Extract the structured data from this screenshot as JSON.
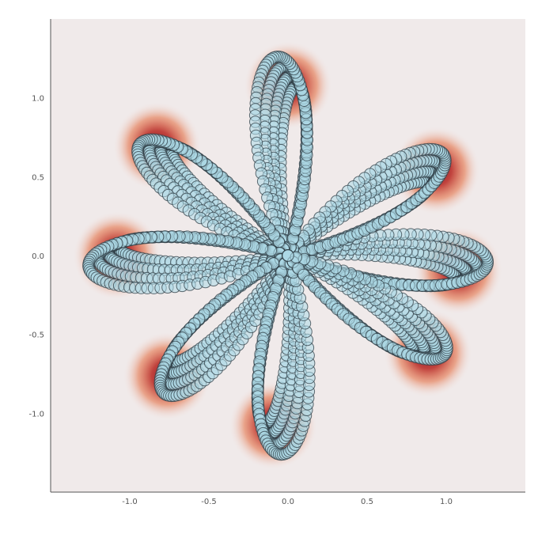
{
  "chart_data": {
    "type": "scatter",
    "description": "Rose curve (8 petals) drawn as many overlapping translucent circles over a density heatmap; petal tips are denser (dark red).",
    "xlim": [
      -1.5,
      1.5
    ],
    "ylim": [
      -1.5,
      1.5
    ],
    "x_ticks": [
      "-1.0",
      "-0.5",
      "0.0",
      "0.5",
      "1.0"
    ],
    "y_ticks": [
      "1.0",
      "0.5",
      "0.0",
      "-0.5",
      "-1.0"
    ],
    "x_tick_values": [
      -1.0,
      -0.5,
      0.0,
      0.5,
      1.0
    ],
    "y_tick_values": [
      1.0,
      0.5,
      0.0,
      -0.5,
      -1.0
    ],
    "grid": false,
    "petals": 8,
    "petal_angles_deg": [
      -5,
      30,
      90,
      140,
      180,
      225,
      265,
      325
    ],
    "petal_radius_max": 1.25,
    "colors": {
      "background": "#f0eaea",
      "marker_fill": "#add8e6",
      "marker_edge": "#2f3e46",
      "heat_low": "#f0eaea",
      "heat_mid": "#e3683a",
      "heat_high": "#7a0a1e",
      "axis": "#555555"
    }
  }
}
